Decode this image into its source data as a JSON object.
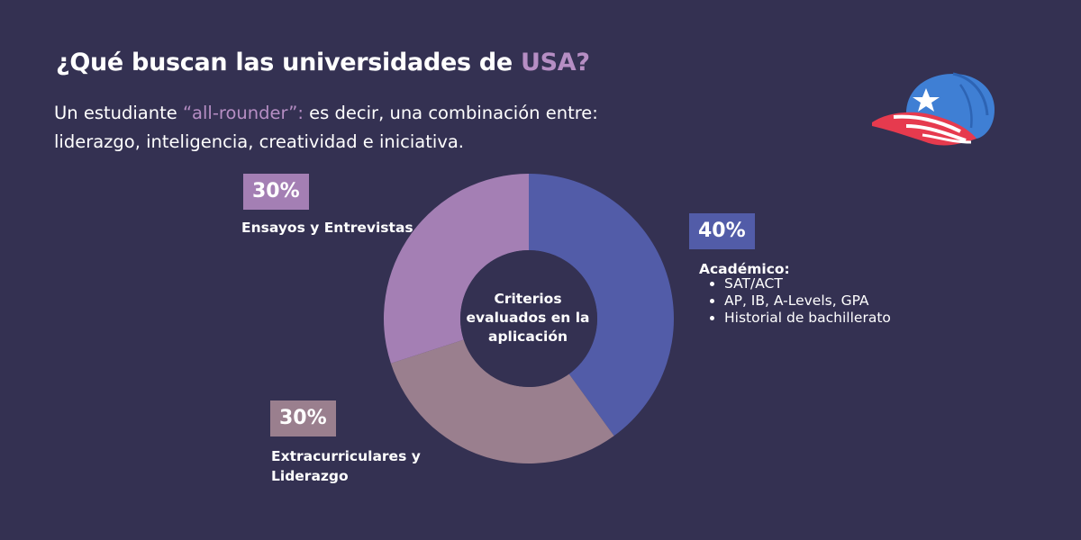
{
  "header": {
    "title_pre": "¿Qué buscan las universidades de ",
    "title_accent": "USA?",
    "subtitle_pre": "Un estudiante ",
    "subtitle_quote": "“all-rounder”:",
    "subtitle_post": " es decir, una combinación entre: liderazgo, inteligencia, creatividad e iniciativa."
  },
  "chart_data": {
    "type": "pie",
    "donut": true,
    "center_label": "Criterios evaluados en la aplicación",
    "segments": [
      {
        "name": "Académico",
        "value": 40,
        "label": "40%",
        "color": "#525ca8"
      },
      {
        "name": "Extracurriculares y Liderazgo",
        "value": 30,
        "label": "30%",
        "color": "#9a7f8e"
      },
      {
        "name": "Ensayos y Entrevistas",
        "value": 30,
        "label": "30%",
        "color": "#a47fb4"
      }
    ],
    "academic_heading": "Académico:",
    "academic_items": [
      "SAT/ACT",
      "AP, IB, A-Levels, GPA",
      "Historial de bachillerato"
    ],
    "background_color": "#343152"
  },
  "decor": {
    "cap_icon": "baseball-cap-icon",
    "cap_colors": [
      "#3f7fd4",
      "#e63a4e",
      "#ffffff"
    ]
  }
}
